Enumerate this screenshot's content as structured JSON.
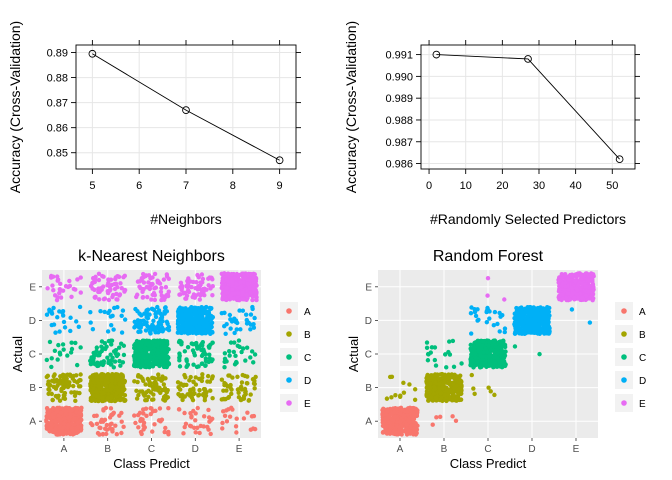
{
  "chart_data": [
    {
      "type": "line",
      "title": "",
      "xlabel": "#Neighbors",
      "ylabel": "Accuracy (Cross-Validation)",
      "x": [
        5,
        7,
        9
      ],
      "y": [
        0.8895,
        0.867,
        0.847
      ],
      "xlim": [
        4.65,
        9.35
      ],
      "ylim": [
        0.8435,
        0.893
      ],
      "xticks": [
        5,
        6,
        7,
        8,
        9
      ],
      "xtick_labels": [
        "5",
        "6",
        "7",
        "8",
        "9"
      ],
      "yticks": [
        0.85,
        0.86,
        0.87,
        0.88,
        0.89
      ],
      "ytick_labels": [
        "0.85",
        "0.86",
        "0.87",
        "0.88",
        "0.89"
      ],
      "grid": true,
      "marker": "open-circle"
    },
    {
      "type": "line",
      "title": "",
      "xlabel": "#Randomly Selected Predictors",
      "ylabel": "Accuracy (Cross-Validation)",
      "x": [
        2,
        27,
        52
      ],
      "y": [
        0.991,
        0.9908,
        0.9862
      ],
      "xlim": [
        -2.2,
        56.2
      ],
      "ylim": [
        0.98575,
        0.99144
      ],
      "xticks": [
        0,
        10,
        20,
        30,
        40,
        50
      ],
      "xtick_labels": [
        "0",
        "10",
        "20",
        "30",
        "40",
        "50"
      ],
      "yticks": [
        0.986,
        0.987,
        0.988,
        0.989,
        0.99,
        0.991
      ],
      "ytick_labels": [
        "0.986",
        "0.987",
        "0.988",
        "0.989",
        "0.990",
        "0.991"
      ],
      "grid": true,
      "marker": "open-circle"
    },
    {
      "type": "scatter",
      "title": "k-Nearest Neighbors",
      "xlabel": "Class Predict",
      "ylabel": "Actual",
      "categories": [
        "A",
        "B",
        "C",
        "D",
        "E"
      ],
      "series": [
        {
          "name": "A",
          "color": "#F8766D",
          "row": "A",
          "counts": [
            1600,
            40,
            35,
            30,
            20
          ]
        },
        {
          "name": "B",
          "color": "#A3A500",
          "row": "B",
          "counts": [
            80,
            1000,
            70,
            60,
            50
          ]
        },
        {
          "name": "C",
          "color": "#00BF7D",
          "row": "C",
          "counts": [
            18,
            60,
            900,
            60,
            25
          ]
        },
        {
          "name": "D",
          "color": "#00B0F6",
          "row": "D",
          "counts": [
            22,
            18,
            80,
            800,
            30
          ]
        },
        {
          "name": "E",
          "color": "#E76BF3",
          "row": "E",
          "counts": [
            28,
            60,
            60,
            60,
            900
          ]
        }
      ],
      "legend": "right",
      "grid": true
    },
    {
      "type": "scatter",
      "title": "Random Forest",
      "xlabel": "Class Predict",
      "ylabel": "Actual",
      "categories": [
        "A",
        "B",
        "C",
        "D",
        "E"
      ],
      "series": [
        {
          "name": "A",
          "color": "#F8766D",
          "row": "A",
          "counts": [
            1650,
            5,
            0,
            0,
            0
          ]
        },
        {
          "name": "B",
          "color": "#A3A500",
          "row": "B",
          "counts": [
            12,
            1050,
            6,
            0,
            0
          ]
        },
        {
          "name": "C",
          "color": "#00BF7D",
          "row": "C",
          "counts": [
            0,
            18,
            950,
            2,
            0
          ]
        },
        {
          "name": "D",
          "color": "#00B0F6",
          "row": "D",
          "counts": [
            0,
            0,
            25,
            900,
            2
          ]
        },
        {
          "name": "E",
          "color": "#E76BF3",
          "row": "E",
          "counts": [
            0,
            0,
            3,
            0,
            1000
          ]
        }
      ],
      "legend": "right",
      "grid": true
    }
  ]
}
